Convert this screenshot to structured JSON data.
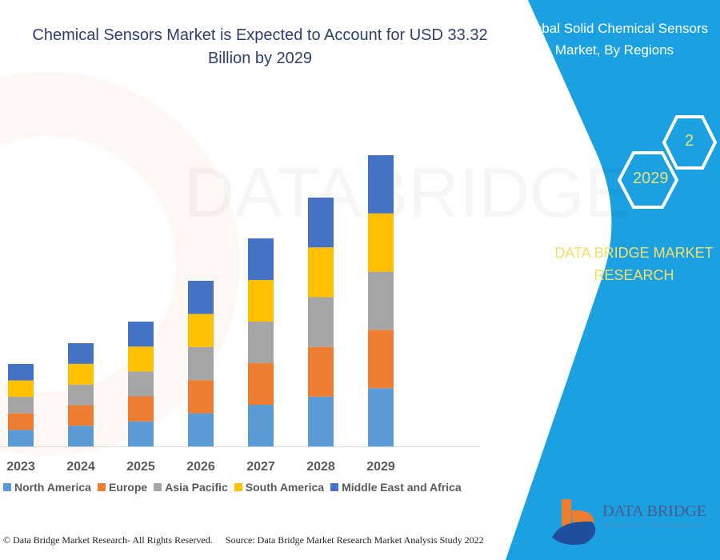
{
  "chart_data": {
    "type": "bar",
    "stacked": true,
    "title": "Chemical Sensors Market is Expected to Account for USD 33.32 Billion by 2029",
    "categories": [
      "2023",
      "2024",
      "2025",
      "2026",
      "2027",
      "2028",
      "2029"
    ],
    "series": [
      {
        "name": "North America",
        "color": "#5B9BD5",
        "values": [
          1.89,
          2.36,
          2.86,
          3.79,
          4.76,
          5.69,
          6.66
        ]
      },
      {
        "name": "Europe",
        "color": "#ED7D31",
        "values": [
          1.89,
          2.36,
          2.86,
          3.79,
          4.76,
          5.69,
          6.67
        ]
      },
      {
        "name": "Asia Pacific",
        "color": "#A5A5A5",
        "values": [
          1.89,
          2.36,
          2.86,
          3.79,
          4.76,
          5.69,
          6.66
        ]
      },
      {
        "name": "South America",
        "color": "#FFC000",
        "values": [
          1.88,
          2.36,
          2.85,
          3.79,
          4.76,
          5.7,
          6.67
        ]
      },
      {
        "name": "Middle East and Africa",
        "color": "#4472C4",
        "values": [
          1.88,
          2.37,
          2.85,
          3.79,
          4.76,
          5.7,
          6.66
        ]
      }
    ],
    "xlabel": "",
    "ylabel": "",
    "ylim": [
      0,
      33.32
    ],
    "grid": false,
    "legend": "bottom"
  },
  "title_lines": [
    "Chemical Sensors Market is Expected to Account for USD 33.32",
    "Billion by 2029"
  ],
  "watermark": "DATABRIDGE",
  "footer": {
    "copyright": "© Data Bridge Market Research- All Rights Reserved.",
    "source": "Source: Data Bridge Market Research Market Analysis Study 2022"
  },
  "side_panel": {
    "title_lines": [
      "Global Solid Chemical Sensors",
      "Market, By Regions"
    ],
    "hex_years": [
      "2029",
      "2"
    ],
    "brand_lines": [
      "DATA BRIDGE MARKET",
      "RESEARCH"
    ],
    "logo_text": "DATA BRIDGE",
    "logo_sub": "MARKET RESEARCH",
    "color": "#1BA1E2"
  }
}
